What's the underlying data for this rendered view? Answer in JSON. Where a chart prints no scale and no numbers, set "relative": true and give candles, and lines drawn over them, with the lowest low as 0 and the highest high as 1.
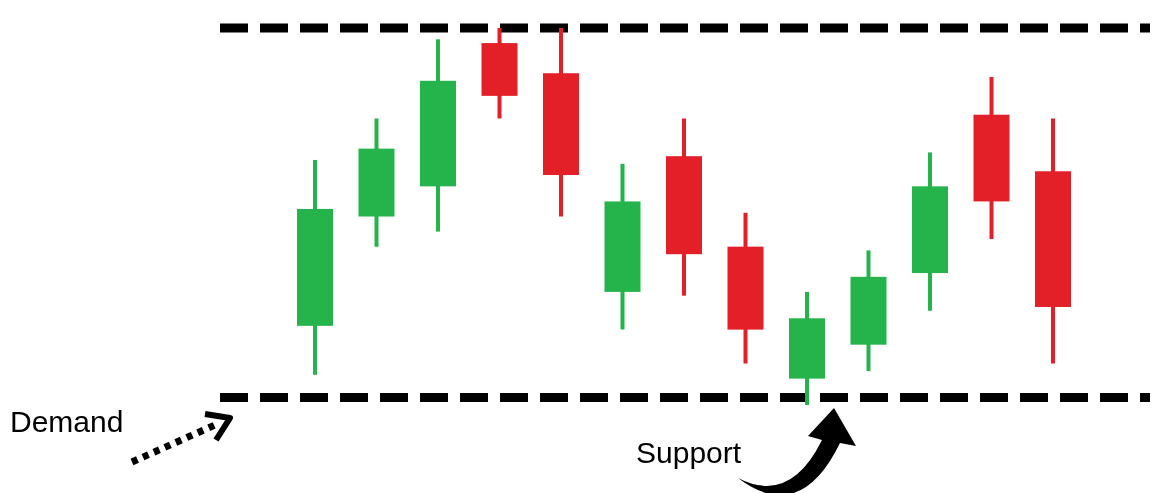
{
  "chart_data": {
    "type": "candlestick",
    "relative": true,
    "categories": [
      null,
      null,
      null,
      null,
      null,
      null,
      null,
      null,
      null,
      null,
      null,
      null,
      null
    ],
    "ohlc": [
      [
        0.21,
        0.65,
        0.08,
        0.52
      ],
      [
        0.5,
        0.76,
        0.42,
        0.68
      ],
      [
        0.58,
        0.97,
        0.46,
        0.86
      ],
      [
        0.96,
        1,
        0.76,
        0.82
      ],
      [
        0.88,
        1,
        0.5,
        0.61
      ],
      [
        0.3,
        0.64,
        0.2,
        0.54
      ],
      [
        0.66,
        0.76,
        0.29,
        0.4
      ],
      [
        0.42,
        0.51,
        0.11,
        0.2
      ],
      [
        0.07,
        0.3,
        0,
        0.23
      ],
      [
        0.16,
        0.41,
        0.09,
        0.34
      ],
      [
        0.35,
        0.67,
        0.25,
        0.58
      ],
      [
        0.77,
        0.87,
        0.44,
        0.54
      ],
      [
        0.62,
        0.76,
        0.11,
        0.26
      ]
    ],
    "colors": [
      "#25b34b",
      "#25b34b",
      "#25b34b",
      "#e32028",
      "#e32028",
      "#25b34b",
      "#e32028",
      "#e32028",
      "#25b34b",
      "#25b34b",
      "#25b34b",
      "#e32028",
      "#e32028"
    ],
    "ref_lines": [
      {
        "axis": "y",
        "value": 1,
        "color": "#000000",
        "line_style": "dashed"
      },
      {
        "axis": "y",
        "value": 0.02,
        "color": "#000000",
        "line_style": "dashed"
      }
    ],
    "annotations": [
      "Demand",
      "Support"
    ]
  }
}
